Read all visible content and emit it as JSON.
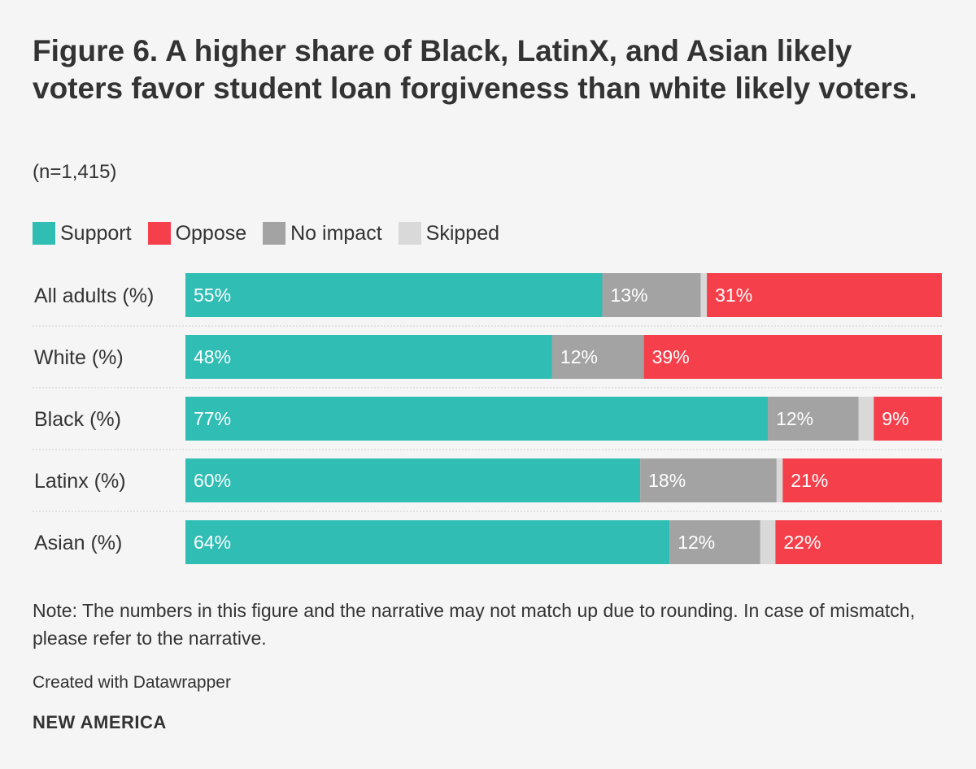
{
  "title": "Figure 6. A higher share of Black, LatinX, and Asian likely voters favor student loan forgiveness than white likely voters.",
  "subtitle": "(n=1,415)",
  "note": "Note: The numbers in this figure and the narrative may not match up due to rounding. In case of mismatch, please refer to the narrative.",
  "credit": "Created with Datawrapper",
  "brand": "NEW AMERICA",
  "legend": [
    {
      "label": "Support",
      "color": "#30bdb3"
    },
    {
      "label": "Oppose",
      "color": "#f53f4a"
    },
    {
      "label": "No impact",
      "color": "#a3a3a3"
    },
    {
      "label": "Skipped",
      "color": "#d9d9d9"
    }
  ],
  "chart_data": {
    "type": "bar",
    "orientation": "horizontal",
    "stacked": true,
    "title": "Figure 6. A higher share of Black, LatinX, and Asian likely voters favor student loan forgiveness than white likely voters.",
    "subtitle": "(n=1,415)",
    "xlim": [
      0,
      100
    ],
    "categories": [
      "All adults (%)",
      "White (%)",
      "Black (%)",
      "Latinx (%)",
      "Asian (%)"
    ],
    "series": [
      {
        "name": "Support",
        "color": "#30bdb3",
        "values": [
          55,
          48,
          77,
          60,
          64
        ],
        "labels": [
          "55%",
          "48%",
          "77%",
          "60%",
          "64%"
        ]
      },
      {
        "name": "No impact",
        "color": "#a3a3a3",
        "values": [
          13,
          12,
          12,
          18,
          12
        ],
        "labels": [
          "13%",
          "12%",
          "12%",
          "18%",
          "12%"
        ]
      },
      {
        "name": "Skipped",
        "color": "#d9d9d9",
        "values": [
          0.8,
          0,
          2,
          0.8,
          2
        ],
        "labels": [
          "",
          "",
          "",
          "",
          ""
        ]
      },
      {
        "name": "Oppose",
        "color": "#f53f4a",
        "values": [
          31,
          39,
          9,
          21,
          22
        ],
        "labels": [
          "31%",
          "39%",
          "9%",
          "21%",
          "22%"
        ]
      }
    ]
  }
}
